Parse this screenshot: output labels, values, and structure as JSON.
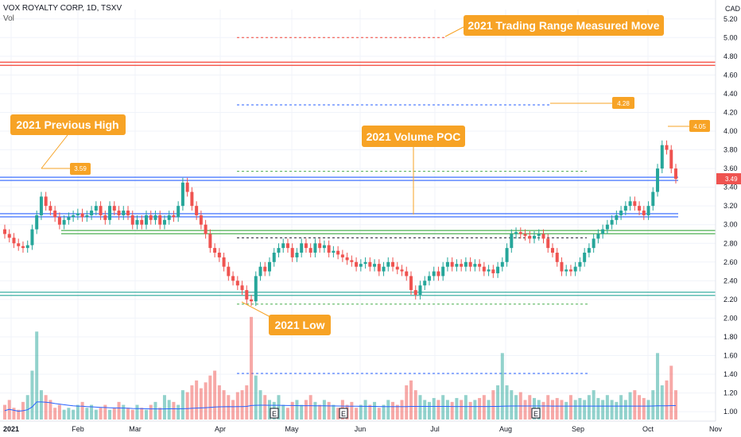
{
  "header": {
    "symbol_line": "VOX ROYALTY CORP, 1D, TSXV",
    "indicator": "Vol"
  },
  "axis": {
    "currency": "CAD"
  },
  "chart_data": {
    "type": "candlestick",
    "ylim": [
      0.95,
      5.3
    ],
    "yticks": [
      "1.00",
      "1.20",
      "1.40",
      "1.60",
      "1.80",
      "2.00",
      "2.20",
      "2.40",
      "2.60",
      "2.80",
      "3.00",
      "3.20",
      "3.40",
      "3.60",
      "3.80",
      "4.00",
      "4.20",
      "4.40",
      "4.60",
      "4.80",
      "5.00",
      "5.20"
    ],
    "xticks": [
      "2021",
      "Feb",
      "Mar",
      "Apr",
      "May",
      "Jun",
      "Jul",
      "Aug",
      "Sep",
      "Oct",
      "Nov"
    ],
    "last_price": "3.49",
    "annotations": [
      {
        "label": "2021 Trading Range Measured Move",
        "kind": "callout"
      },
      {
        "label": "2021 Previous High",
        "kind": "callout"
      },
      {
        "label": "2021 Volume POC",
        "kind": "callout"
      },
      {
        "label": "2021 Low",
        "kind": "callout"
      }
    ],
    "price_tags": [
      "3.59",
      "4.28",
      "4.05"
    ],
    "horizontal_levels": [
      {
        "price": 4.72,
        "color": "#f44336"
      },
      {
        "price": 3.49,
        "color": "#2962ff"
      },
      {
        "price": 3.1,
        "color": "#2962ff"
      },
      {
        "price": 2.92,
        "color": "#4caf50"
      },
      {
        "price": 2.26,
        "color": "#26a69a"
      },
      {
        "price": 5.0,
        "color": "#f44336",
        "dashed": true
      },
      {
        "price": 4.28,
        "color": "#2962ff",
        "dashed": true
      },
      {
        "price": 3.57,
        "color": "#4caf50",
        "dashed": true
      },
      {
        "price": 2.86,
        "color": "#131722",
        "dashed": true
      },
      {
        "price": 2.15,
        "color": "#4caf50",
        "dashed": true
      }
    ],
    "earnings_markers": [
      "E",
      "E",
      "E"
    ],
    "closes": [
      2.9,
      2.86,
      2.8,
      2.77,
      2.75,
      2.78,
      2.95,
      3.1,
      3.3,
      3.2,
      3.15,
      3.08,
      3.0,
      3.05,
      3.08,
      3.1,
      3.12,
      3.08,
      3.1,
      3.15,
      3.2,
      3.1,
      3.05,
      3.2,
      3.15,
      3.1,
      3.15,
      3.1,
      3.0,
      3.05,
      3.0,
      3.1,
      3.05,
      3.1,
      3.0,
      3.05,
      3.1,
      3.08,
      3.2,
      3.45,
      3.35,
      3.2,
      3.1,
      3.0,
      2.9,
      2.75,
      2.7,
      2.65,
      2.55,
      2.45,
      2.4,
      2.35,
      2.3,
      2.2,
      2.18,
      2.45,
      2.55,
      2.5,
      2.6,
      2.7,
      2.75,
      2.8,
      2.75,
      2.65,
      2.7,
      2.8,
      2.75,
      2.7,
      2.8,
      2.75,
      2.78,
      2.7,
      2.72,
      2.68,
      2.65,
      2.62,
      2.6,
      2.55,
      2.58,
      2.6,
      2.55,
      2.58,
      2.5,
      2.55,
      2.6,
      2.55,
      2.52,
      2.5,
      2.45,
      2.3,
      2.25,
      2.35,
      2.4,
      2.45,
      2.5,
      2.45,
      2.55,
      2.6,
      2.55,
      2.58,
      2.55,
      2.6,
      2.55,
      2.58,
      2.55,
      2.5,
      2.52,
      2.48,
      2.55,
      2.6,
      2.75,
      2.9,
      2.92,
      2.9,
      2.88,
      2.85,
      2.88,
      2.9,
      2.85,
      2.75,
      2.7,
      2.6,
      2.5,
      2.52,
      2.5,
      2.55,
      2.6,
      2.7,
      2.75,
      2.85,
      2.9,
      2.95,
      3.0,
      3.05,
      3.1,
      3.15,
      3.2,
      3.25,
      3.2,
      3.15,
      3.1,
      3.2,
      3.35,
      3.6,
      3.85,
      3.8,
      3.6,
      3.49
    ],
    "volumes": [
      0.15,
      0.2,
      0.12,
      0.1,
      0.18,
      0.25,
      0.5,
      0.9,
      0.3,
      0.25,
      0.2,
      0.12,
      0.15,
      0.1,
      0.12,
      0.1,
      0.15,
      0.18,
      0.12,
      0.15,
      0.1,
      0.12,
      0.15,
      0.1,
      0.12,
      0.18,
      0.15,
      0.12,
      0.1,
      0.15,
      0.12,
      0.1,
      0.15,
      0.18,
      0.12,
      0.25,
      0.2,
      0.18,
      0.15,
      0.3,
      0.28,
      0.35,
      0.4,
      0.32,
      0.38,
      0.45,
      0.5,
      0.35,
      0.3,
      0.25,
      0.2,
      0.28,
      0.3,
      0.35,
      1.05,
      0.45,
      0.3,
      0.25,
      0.2,
      0.18,
      0.25,
      0.15,
      0.12,
      0.18,
      0.2,
      0.15,
      0.2,
      0.25,
      0.18,
      0.15,
      0.2,
      0.18,
      0.15,
      0.12,
      0.2,
      0.15,
      0.18,
      0.12,
      0.15,
      0.2,
      0.15,
      0.18,
      0.12,
      0.15,
      0.2,
      0.18,
      0.15,
      0.2,
      0.35,
      0.4,
      0.3,
      0.25,
      0.2,
      0.18,
      0.22,
      0.2,
      0.25,
      0.2,
      0.18,
      0.22,
      0.2,
      0.25,
      0.18,
      0.2,
      0.22,
      0.25,
      0.2,
      0.3,
      0.35,
      0.68,
      0.35,
      0.3,
      0.25,
      0.28,
      0.2,
      0.25,
      0.22,
      0.2,
      0.18,
      0.25,
      0.2,
      0.22,
      0.2,
      0.18,
      0.25,
      0.2,
      0.22,
      0.2,
      0.25,
      0.3,
      0.22,
      0.2,
      0.25,
      0.2,
      0.18,
      0.25,
      0.2,
      0.28,
      0.3,
      0.25,
      0.22,
      0.2,
      0.3,
      0.68,
      0.35,
      0.4,
      0.55,
      0.3
    ]
  }
}
